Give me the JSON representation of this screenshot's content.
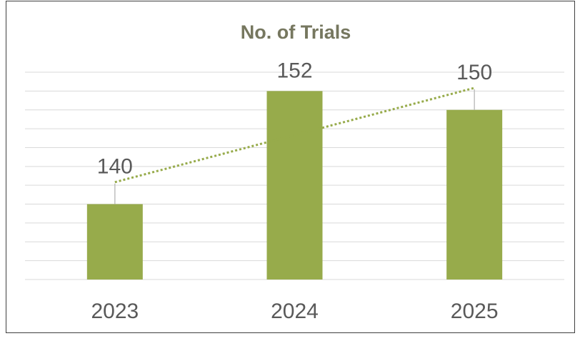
{
  "chart_data": {
    "type": "bar",
    "title": "No. of Trials",
    "categories": [
      "2023",
      "2024",
      "2025"
    ],
    "values": [
      140,
      152,
      150
    ],
    "color": "#97ab4b",
    "ylim": [
      132,
      154
    ],
    "yticks": [
      132,
      134,
      136,
      138,
      140,
      142,
      144,
      146,
      148,
      150,
      152,
      154
    ],
    "grid": true,
    "show_tick_labels": false,
    "trendline": true,
    "data_labels": true
  }
}
